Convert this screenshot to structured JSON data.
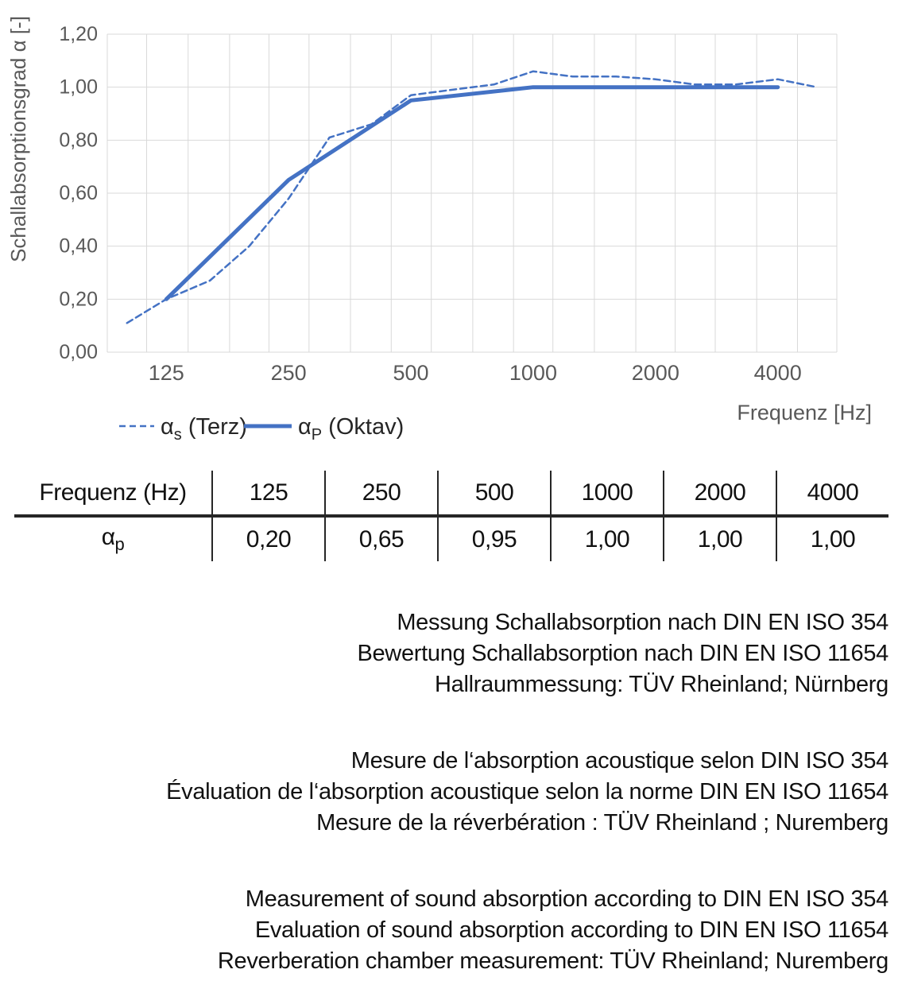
{
  "chart": {
    "y_axis": {
      "title": "Schallabsorptionsgrad α [-]",
      "ticks": [
        "1,20",
        "1,00",
        "0,80",
        "0,60",
        "0,40",
        "0,20",
        "0,00"
      ]
    },
    "x_axis": {
      "title": "Frequenz [Hz]",
      "ticks": [
        "125",
        "250",
        "500",
        "1000",
        "2000",
        "4000"
      ]
    },
    "legend": [
      {
        "base": "α",
        "sub": "s",
        "rest": " (Terz)",
        "style": "dashed"
      },
      {
        "base": "α",
        "sub": "P",
        "rest": " (Oktav)",
        "style": "solid"
      }
    ],
    "line_color": "#4472C4",
    "gridline_color": "#D9D9D9",
    "axis_text_color": "#595959"
  },
  "chart_data": {
    "type": "line",
    "x_scale": "log",
    "x": [
      100,
      125,
      160,
      200,
      250,
      315,
      400,
      500,
      630,
      800,
      1000,
      1250,
      1600,
      2000,
      2500,
      3150,
      4000,
      5000
    ],
    "series": [
      {
        "name": "αs (Terz)",
        "style": "dashed",
        "values": [
          0.11,
          0.2,
          0.27,
          0.4,
          0.58,
          0.81,
          0.86,
          0.97,
          0.99,
          1.01,
          1.06,
          1.04,
          1.04,
          1.03,
          1.01,
          1.01,
          1.03,
          1.0
        ]
      },
      {
        "name": "αP (Oktav)",
        "style": "solid",
        "x": [
          125,
          250,
          500,
          1000,
          2000,
          4000
        ],
        "values": [
          0.2,
          0.65,
          0.95,
          1.0,
          1.0,
          1.0
        ]
      }
    ],
    "title": "",
    "xlabel": "Frequenz [Hz]",
    "ylabel": "Schallabsorptionsgrad α [-]",
    "ylim": [
      0,
      1.2
    ],
    "grid": true,
    "legend_position": "bottom-left"
  },
  "table": {
    "header": [
      "Frequenz (Hz)",
      "125",
      "250",
      "500",
      "1000",
      "2000",
      "4000"
    ],
    "row_label_base": "α",
    "row_label_sub": "p",
    "values": [
      "0,20",
      "0,65",
      "0,95",
      "1,00",
      "1,00",
      "1,00"
    ]
  },
  "notes": {
    "de": [
      "Messung Schallabsorption nach DIN EN ISO 354",
      "Bewertung Schallabsorption nach DIN EN ISO 11654",
      "Hallraummessung: TÜV Rheinland; Nürnberg"
    ],
    "fr": [
      "Mesure de l‘absorption acoustique selon DIN ISO 354",
      "Évaluation de l‘absorption acoustique selon la norme DIN EN ISO 11654",
      "Mesure de la réverbération : TÜV Rheinland ; Nuremberg"
    ],
    "en": [
      "Measurement of sound absorption according to DIN EN ISO 354",
      "Evaluation of sound absorption according to DIN EN ISO 11654",
      "Reverberation chamber measurement: TÜV Rheinland; Nuremberg"
    ]
  }
}
